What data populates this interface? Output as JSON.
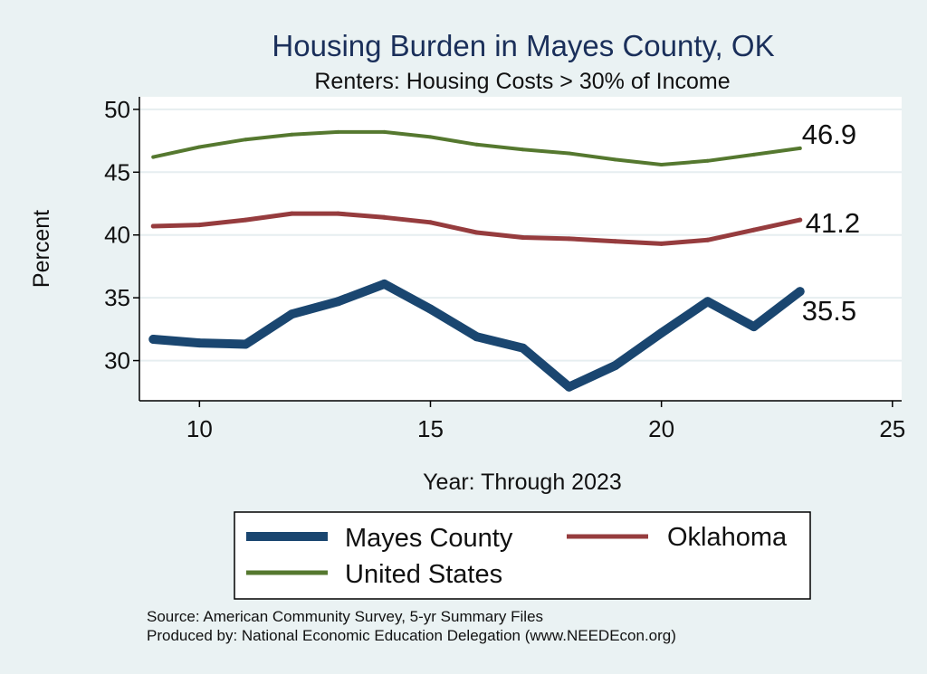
{
  "chart_data": {
    "type": "line",
    "title": "Housing Burden in Mayes County, OK",
    "subtitle": "Renters: Housing Costs > 30% of Income",
    "xlabel": "Year: Through 2023",
    "ylabel": "Percent",
    "xlim": [
      8.7,
      25.2
    ],
    "ylim": [
      26.8,
      51.0
    ],
    "xticks": [
      10,
      15,
      20,
      25
    ],
    "yticks": [
      30,
      35,
      40,
      45,
      50
    ],
    "grid": true,
    "x": [
      9,
      10,
      11,
      12,
      13,
      14,
      15,
      16,
      17,
      18,
      19,
      20,
      21,
      22,
      23
    ],
    "series": [
      {
        "name": "Mayes County",
        "color": "#1a4670",
        "values": [
          31.7,
          31.4,
          31.3,
          33.7,
          34.7,
          36.1,
          34.1,
          31.9,
          31.0,
          27.9,
          29.6,
          32.2,
          34.7,
          32.7,
          35.5
        ],
        "end_label": "35.5"
      },
      {
        "name": "Oklahoma",
        "color": "#963c3e",
        "values": [
          40.7,
          40.8,
          41.2,
          41.7,
          41.7,
          41.4,
          41.0,
          40.2,
          39.8,
          39.7,
          39.5,
          39.3,
          39.6,
          40.4,
          41.2
        ],
        "end_label": "41.2"
      },
      {
        "name": "United States",
        "color": "#55782f",
        "values": [
          46.2,
          47.0,
          47.6,
          48.0,
          48.2,
          48.2,
          47.8,
          47.2,
          46.8,
          46.5,
          46.0,
          45.6,
          45.9,
          46.4,
          46.9
        ],
        "end_label": "46.9"
      }
    ],
    "legend": {
      "placement": "bottom"
    },
    "notes": [
      "Source: American Community Survey, 5-yr Summary Files",
      "Produced by: National Economic Education Delegation (www.NEEDEcon.org)"
    ]
  }
}
